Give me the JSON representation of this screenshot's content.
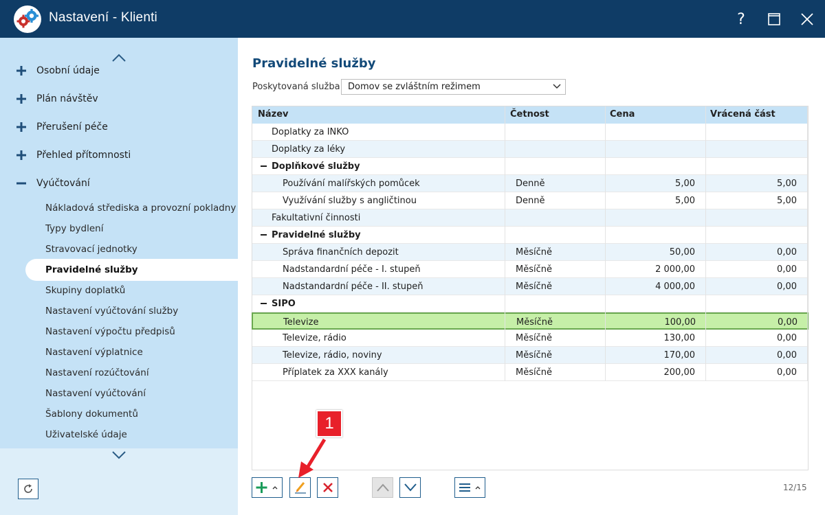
{
  "window": {
    "title": "Nastavení - Klienti",
    "help_label": "?"
  },
  "sidebar": {
    "groups": [
      {
        "label": "Osobní údaje",
        "expanded": false
      },
      {
        "label": "Plán návštěv",
        "expanded": false
      },
      {
        "label": "Přerušení péče",
        "expanded": false
      },
      {
        "label": "Přehled přítomnosti",
        "expanded": false
      },
      {
        "label": "Vyúčtování",
        "expanded": true
      }
    ],
    "items": [
      "Nákladová střediska a provozní pokladny",
      "Typy bydlení",
      "Stravovací jednotky",
      "Pravidelné služby",
      "Skupiny doplatků",
      "Nastavení vyúčtování služby",
      "Nastavení výpočtu předpisů",
      "Nastavení výplatnice",
      "Nastavení rozúčtování",
      "Nastavení vyúčtování",
      "Šablony dokumentů",
      "Uživatelské údaje"
    ],
    "active_item": "Pravidelné služby"
  },
  "main": {
    "title": "Pravidelné služby",
    "filter_label": "Poskytovaná služba:",
    "filter_value": "Domov se zvláštním režimem",
    "columns": [
      "Název",
      "Četnost",
      "Cena",
      "Vrácená část"
    ],
    "rows": [
      {
        "type": "item",
        "name": "Doplatky za INKO",
        "freq": "",
        "price": "",
        "refund": ""
      },
      {
        "type": "item",
        "name": "Doplatky za léky",
        "freq": "",
        "price": "",
        "refund": ""
      },
      {
        "type": "group",
        "name": "Doplňkové služby",
        "freq": "",
        "price": "",
        "refund": ""
      },
      {
        "type": "child",
        "name": "Používání malířských pomůcek",
        "freq": "Denně",
        "price": "5,00",
        "refund": "5,00"
      },
      {
        "type": "child",
        "name": "Využívání služby s angličtinou",
        "freq": "Denně",
        "price": "5,00",
        "refund": "5,00"
      },
      {
        "type": "item",
        "name": "Fakultativní činnosti",
        "freq": "",
        "price": "",
        "refund": ""
      },
      {
        "type": "group",
        "name": "Pravidelné služby",
        "freq": "",
        "price": "",
        "refund": ""
      },
      {
        "type": "child",
        "name": "Správa finančních depozit",
        "freq": "Měsíčně",
        "price": "50,00",
        "refund": "0,00"
      },
      {
        "type": "child",
        "name": "Nadstandardní péče - I. stupeň",
        "freq": "Měsíčně",
        "price": "2 000,00",
        "refund": "0,00"
      },
      {
        "type": "child",
        "name": "Nadstandardní péče - II. stupeň",
        "freq": "Měsíčně",
        "price": "4 000,00",
        "refund": "0,00"
      },
      {
        "type": "group",
        "name": "SIPO",
        "freq": "",
        "price": "",
        "refund": ""
      },
      {
        "type": "child",
        "name": "Televize",
        "freq": "Měsíčně",
        "price": "100,00",
        "refund": "0,00",
        "selected": true
      },
      {
        "type": "child",
        "name": "Televize, rádio",
        "freq": "Měsíčně",
        "price": "130,00",
        "refund": "0,00"
      },
      {
        "type": "child",
        "name": "Televize, rádio, noviny",
        "freq": "Měsíčně",
        "price": "170,00",
        "refund": "0,00"
      },
      {
        "type": "child",
        "name": "Příplatek za XXX kanály",
        "freq": "Měsíčně",
        "price": "200,00",
        "refund": "0,00"
      }
    ],
    "counter": "12/15"
  },
  "toolbar": {
    "icons": [
      "plus-icon",
      "pencil-icon",
      "delete-x-icon",
      "chevron-up-icon",
      "chevron-down-icon",
      "menu-icon"
    ]
  },
  "annotation": {
    "label": "1"
  },
  "colors": {
    "titlebar": "#0f3c66",
    "sidebar": "#c5e2f6",
    "header": "#c5e2f6",
    "selected_row": "#c6efa8",
    "accent_green": "#1a9c5a",
    "danger_red": "#d9232d"
  }
}
